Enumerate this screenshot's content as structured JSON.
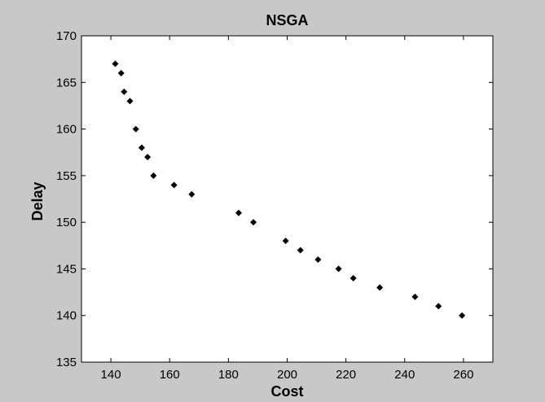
{
  "chart_data": {
    "type": "scatter",
    "title": "NSGA",
    "xlabel": "Cost",
    "ylabel": "Delay",
    "xlim": [
      130,
      270
    ],
    "ylim": [
      135,
      170
    ],
    "xticks": [
      140,
      160,
      180,
      200,
      220,
      240,
      260
    ],
    "yticks": [
      135,
      140,
      145,
      150,
      155,
      160,
      165,
      170
    ],
    "grid": false,
    "legend": "none",
    "marker": "diamond",
    "colors": {
      "figure_background": "#c8c8c8",
      "plot_background": "#ffffff",
      "marker": "#000000"
    },
    "points": [
      {
        "x": 141.5,
        "y": 167
      },
      {
        "x": 143.5,
        "y": 166
      },
      {
        "x": 144.5,
        "y": 164
      },
      {
        "x": 146.5,
        "y": 163
      },
      {
        "x": 148.5,
        "y": 160
      },
      {
        "x": 150.5,
        "y": 158
      },
      {
        "x": 152.5,
        "y": 157
      },
      {
        "x": 154.5,
        "y": 155
      },
      {
        "x": 161.5,
        "y": 154
      },
      {
        "x": 167.5,
        "y": 153
      },
      {
        "x": 183.5,
        "y": 151
      },
      {
        "x": 188.5,
        "y": 150
      },
      {
        "x": 199.5,
        "y": 148
      },
      {
        "x": 204.5,
        "y": 147
      },
      {
        "x": 210.5,
        "y": 146
      },
      {
        "x": 217.5,
        "y": 145
      },
      {
        "x": 222.5,
        "y": 144
      },
      {
        "x": 231.5,
        "y": 143
      },
      {
        "x": 243.5,
        "y": 142
      },
      {
        "x": 251.5,
        "y": 141
      },
      {
        "x": 259.5,
        "y": 140
      }
    ]
  }
}
